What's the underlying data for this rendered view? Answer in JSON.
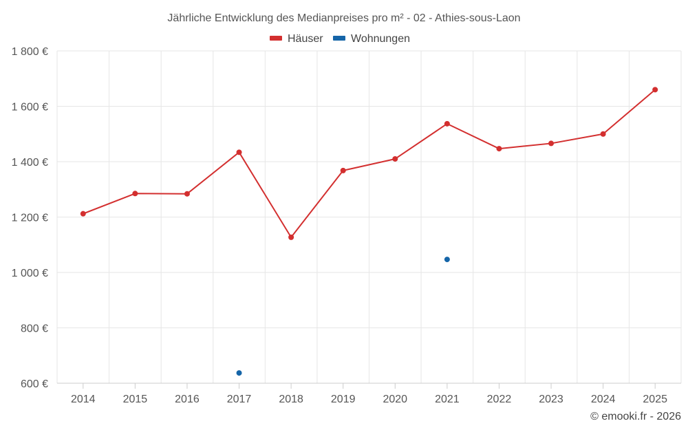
{
  "chart_data": {
    "type": "line",
    "title": "Jährliche Entwicklung des Medianpreises pro m² - 02 - Athies-sous-Laon",
    "categories": [
      "2014",
      "2015",
      "2016",
      "2017",
      "2018",
      "2019",
      "2020",
      "2021",
      "2022",
      "2023",
      "2024",
      "2025"
    ],
    "series": [
      {
        "name": "Häuser",
        "color": "#d32f2f",
        "values": [
          1212,
          1285,
          1284,
          1434,
          1127,
          1368,
          1410,
          1537,
          1447,
          1466,
          1500,
          1660
        ]
      },
      {
        "name": "Wohnungen",
        "color": "#1565a8",
        "values": [
          null,
          null,
          null,
          637,
          null,
          null,
          null,
          1047,
          null,
          null,
          null,
          null
        ]
      }
    ],
    "ylim": [
      600,
      1800
    ],
    "yticks": [
      600,
      800,
      1000,
      1200,
      1400,
      1600,
      1800
    ],
    "ytick_labels": [
      "600 €",
      "800 €",
      "1 000 €",
      "1 200 €",
      "1 400 €",
      "1 600 €",
      "1 800 €"
    ],
    "legend_position": "top-center",
    "grid": true
  },
  "footer": {
    "copyright": "© emooki.fr - 2026"
  }
}
